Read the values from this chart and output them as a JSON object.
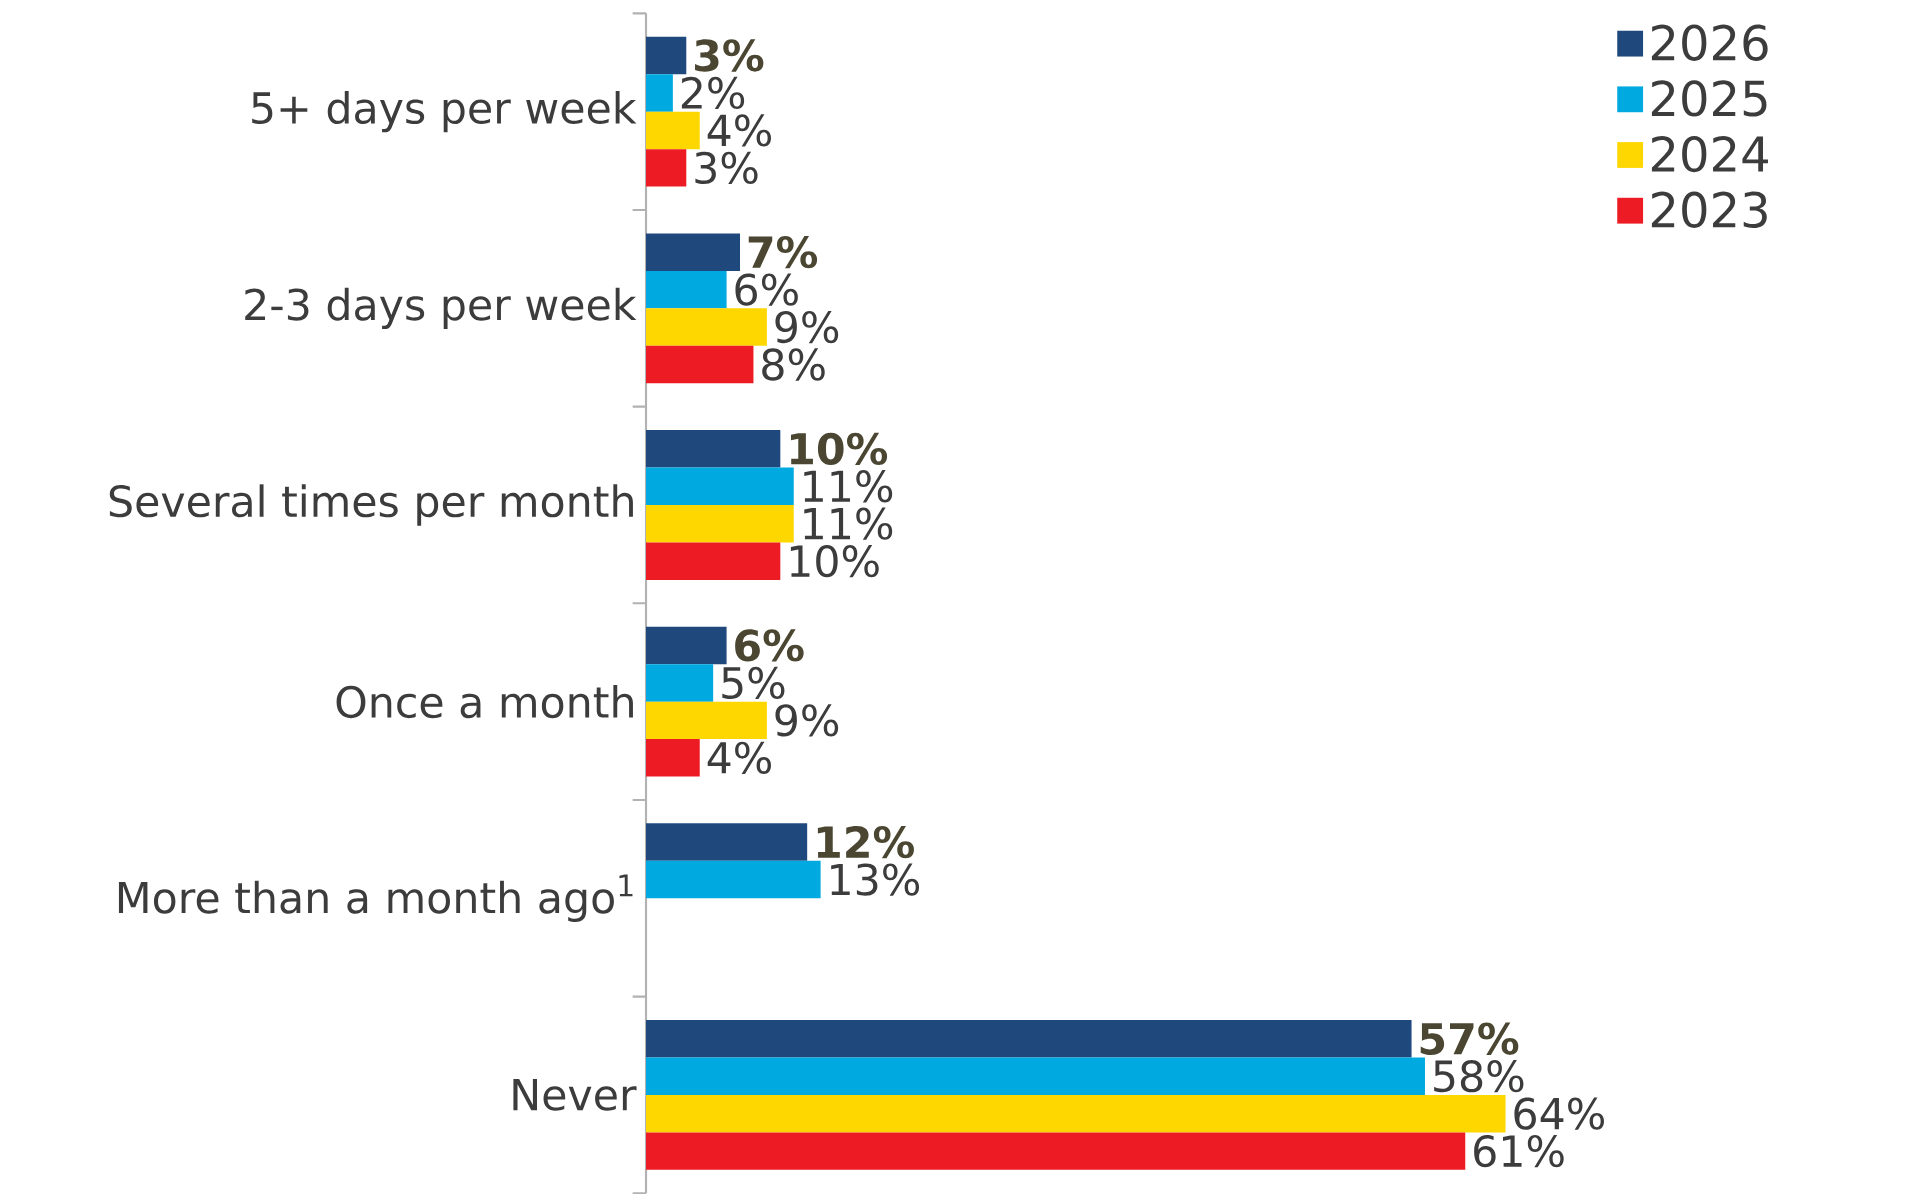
{
  "chart_data": {
    "type": "bar",
    "orientation": "horizontal",
    "categories": [
      "5+ days per week",
      "2-3 days per week",
      "Several times per month",
      "Once a month",
      "More than a month ago$^{1}$",
      "Never"
    ],
    "series": [
      {
        "name": "2026",
        "color": "#1f497d",
        "values": [
          3,
          7,
          10,
          6,
          12,
          57
        ],
        "value_labels": [
          "3%",
          "7%",
          "10%",
          "6%",
          "12%",
          "57%"
        ]
      },
      {
        "name": "2025",
        "color": "#00a9e0",
        "values": [
          2,
          6,
          11,
          5,
          13,
          58
        ],
        "value_labels": [
          "2%",
          "6%",
          "11%",
          "5%",
          "13%",
          "58%"
        ]
      },
      {
        "name": "2024",
        "color": "#ffd700",
        "values": [
          4,
          9,
          11,
          9,
          null,
          64
        ],
        "value_labels": [
          "4%",
          "9%",
          "11%",
          "9%",
          null,
          "64%"
        ]
      },
      {
        "name": "2023",
        "color": "#ed1c24",
        "values": [
          3,
          8,
          10,
          4,
          null,
          61
        ],
        "value_labels": [
          "3%",
          "8%",
          "10%",
          "4%",
          null,
          "61%"
        ]
      }
    ],
    "legend": "top right"
  }
}
